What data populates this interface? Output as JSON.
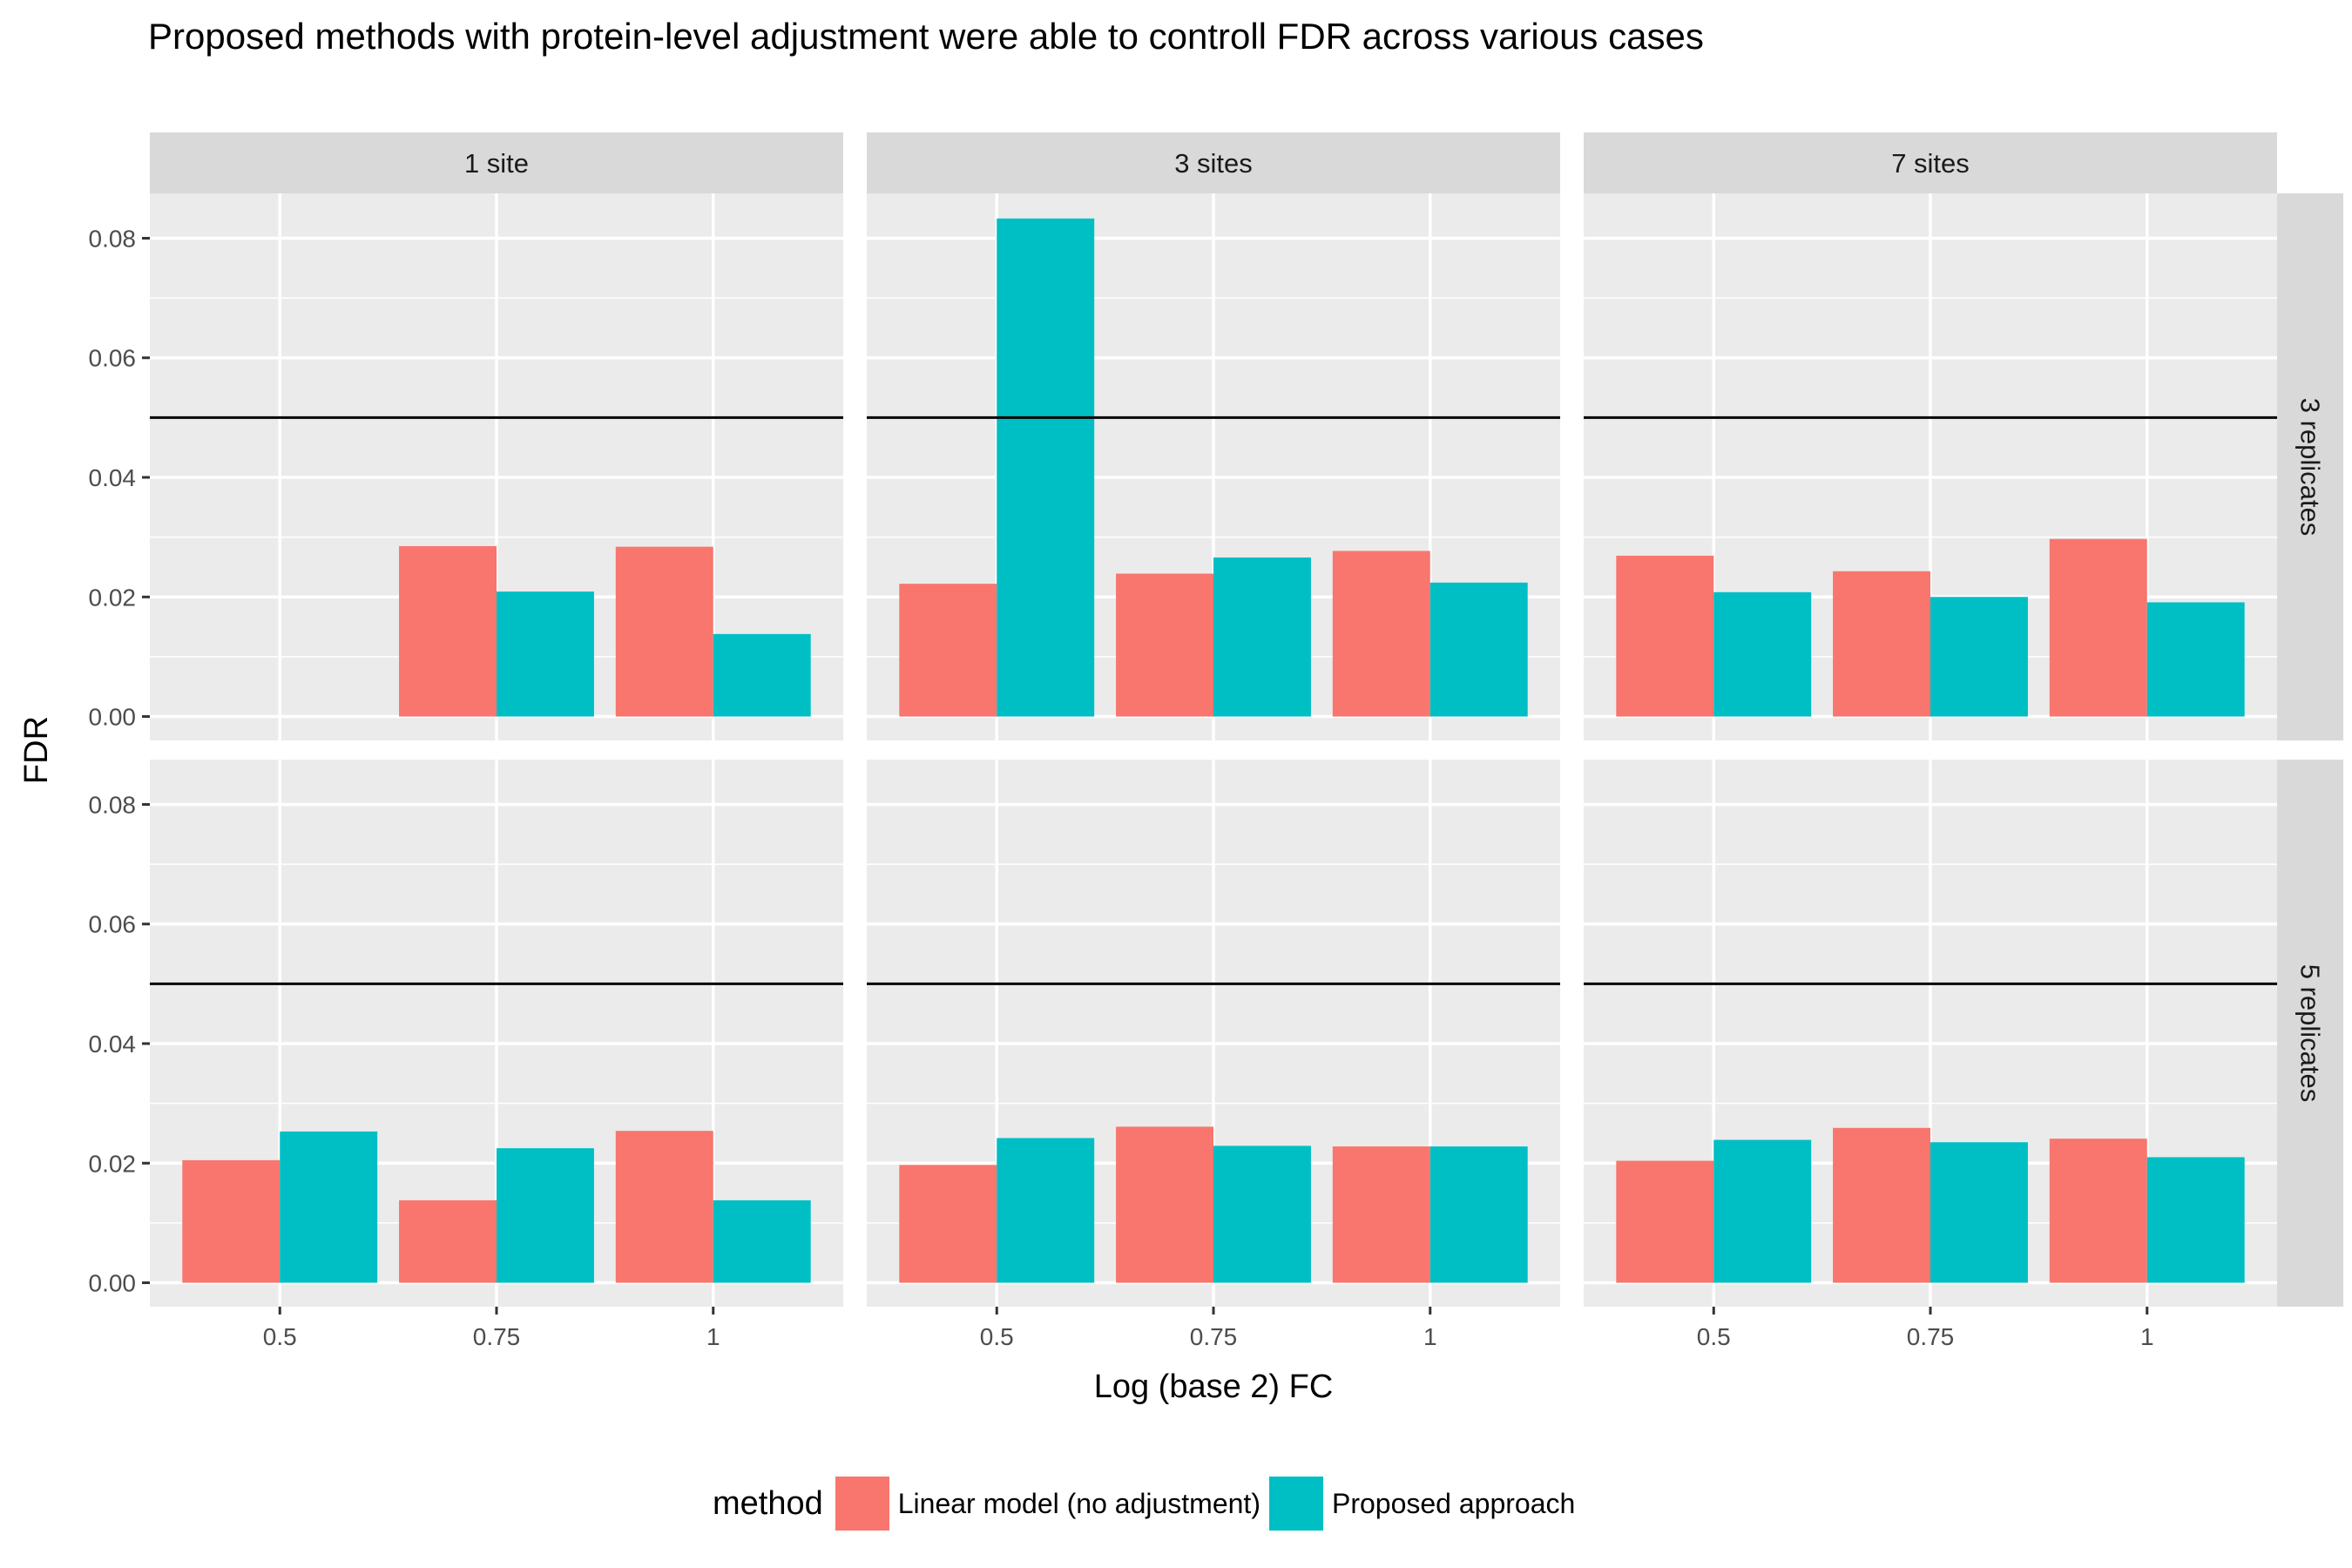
{
  "chart_data": {
    "type": "bar",
    "title": "Proposed methods with protein-level adjustment were able to controll FDR across various cases",
    "xlabel": "Log (base 2) FC",
    "ylabel": "FDR",
    "ylim": [
      -0.004,
      0.0875
    ],
    "yticks": [
      "0.00",
      "0.02",
      "0.04",
      "0.06",
      "0.08"
    ],
    "ytick_values": [
      0,
      0.02,
      0.04,
      0.06,
      0.08
    ],
    "categories": [
      "0.5",
      "0.75",
      "1"
    ],
    "reference_line": 0.05,
    "grid": true,
    "legend_title": "method",
    "legend_position": "bottom",
    "series_names": [
      "Linear model (no adjustment)",
      "Proposed approach"
    ],
    "series_colors": [
      "#F8766D",
      "#00BFC4"
    ],
    "col_facets": [
      "1 site",
      "3 sites",
      "7 sites"
    ],
    "row_facets": [
      "3 replicates",
      "5 replicates"
    ],
    "panels": [
      {
        "col": "1 site",
        "row": "3 replicates",
        "series": [
          {
            "name": "Linear model (no adjustment)",
            "values": [
              0,
              0.0285,
              0.0284
            ]
          },
          {
            "name": "Proposed approach",
            "values": [
              0,
              0.0209,
              0.0138
            ]
          }
        ]
      },
      {
        "col": "3 sites",
        "row": "3 replicates",
        "series": [
          {
            "name": "Linear model (no adjustment)",
            "values": [
              0.0222,
              0.0239,
              0.0277
            ]
          },
          {
            "name": "Proposed approach",
            "values": [
              0.0833,
              0.0266,
              0.0224
            ]
          }
        ]
      },
      {
        "col": "7 sites",
        "row": "3 replicates",
        "series": [
          {
            "name": "Linear model (no adjustment)",
            "values": [
              0.0269,
              0.0243,
              0.0297
            ]
          },
          {
            "name": "Proposed approach",
            "values": [
              0.0208,
              0.02,
              0.0191
            ]
          }
        ]
      },
      {
        "col": "1 site",
        "row": "5 replicates",
        "series": [
          {
            "name": "Linear model (no adjustment)",
            "values": [
              0.0205,
              0.0138,
              0.0254
            ]
          },
          {
            "name": "Proposed approach",
            "values": [
              0.0253,
              0.0225,
              0.0138
            ]
          }
        ]
      },
      {
        "col": "3 sites",
        "row": "5 replicates",
        "series": [
          {
            "name": "Linear model (no adjustment)",
            "values": [
              0.0197,
              0.0261,
              0.0228
            ]
          },
          {
            "name": "Proposed approach",
            "values": [
              0.0242,
              0.0229,
              0.0228
            ]
          }
        ]
      },
      {
        "col": "7 sites",
        "row": "5 replicates",
        "series": [
          {
            "name": "Linear model (no adjustment)",
            "values": [
              0.0204,
              0.0259,
              0.0241
            ]
          },
          {
            "name": "Proposed approach",
            "values": [
              0.0239,
              0.0235,
              0.021
            ]
          }
        ]
      }
    ]
  }
}
